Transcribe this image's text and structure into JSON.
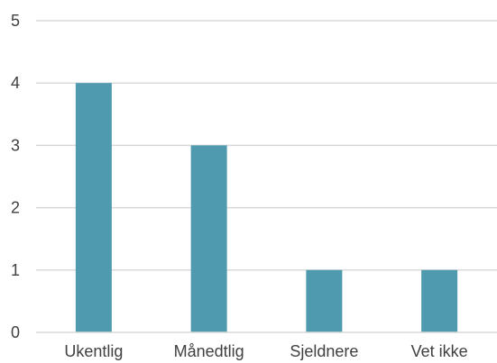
{
  "chart_data": {
    "type": "bar",
    "categories": [
      "Ukentlig",
      "Månedtlig",
      "Sjeldnere",
      "Vet ikke"
    ],
    "values": [
      4,
      3,
      1,
      1
    ],
    "title": "",
    "xlabel": "",
    "ylabel": "",
    "ylim": [
      0,
      5
    ],
    "yticks": [
      "0",
      "1",
      "2",
      "3",
      "4",
      "5"
    ],
    "grid": true,
    "legend": "none",
    "bar_color": "#4f9aaf",
    "grid_color": "#d9d9d9",
    "text_color": "#404040"
  }
}
